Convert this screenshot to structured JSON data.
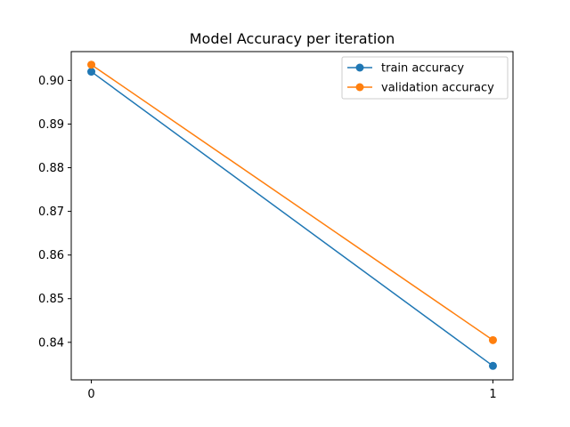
{
  "chart_data": {
    "type": "line",
    "title": "Model Accuracy per iteration",
    "xlabel": "",
    "ylabel": "",
    "x": [
      0,
      1
    ],
    "x_ticks": [
      0,
      1
    ],
    "x_tick_labels": [
      "0",
      "1"
    ],
    "xlim": [
      -0.05,
      1.05
    ],
    "ylim": [
      0.8314,
      0.9066
    ],
    "y_ticks": [
      0.84,
      0.85,
      0.86,
      0.87,
      0.88,
      0.89,
      0.9
    ],
    "y_tick_labels": [
      "0.84",
      "0.85",
      "0.86",
      "0.87",
      "0.88",
      "0.89",
      "0.90"
    ],
    "grid": false,
    "legend_position": "top-right",
    "series": [
      {
        "name": "train accuracy",
        "color": "#1f77b4",
        "marker": "circle",
        "values": [
          0.902,
          0.8346
        ]
      },
      {
        "name": "validation accuracy",
        "color": "#ff7f0e",
        "marker": "circle",
        "values": [
          0.9036,
          0.8405
        ]
      }
    ]
  }
}
